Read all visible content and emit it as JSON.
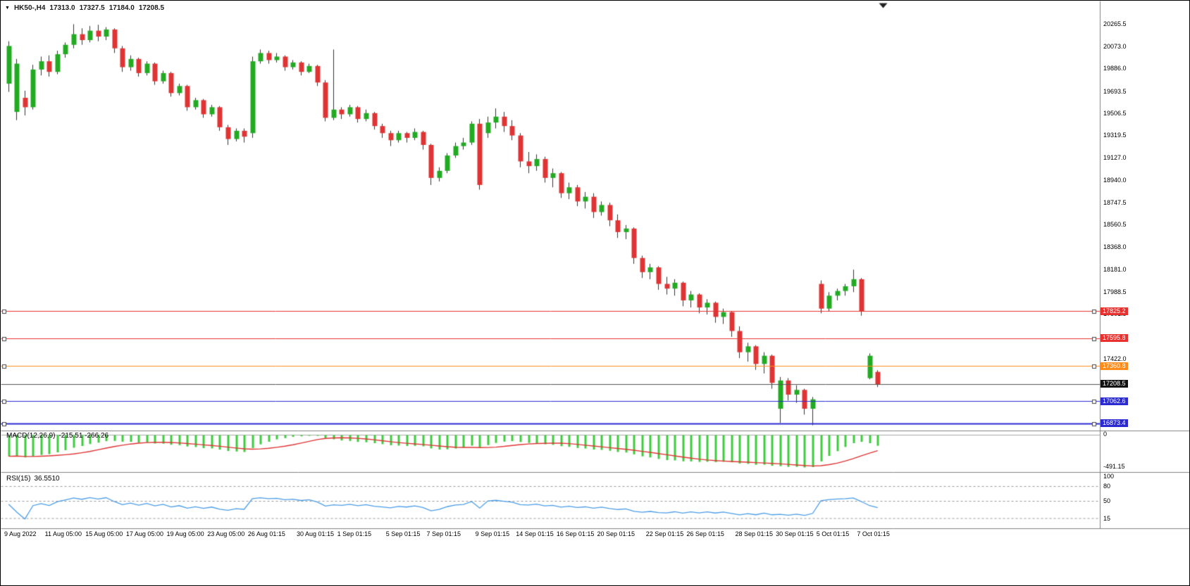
{
  "quote_bar": {
    "symbol_period": "HK50-,H4",
    "open": "17313.0",
    "high": "17327.5",
    "low": "17184.0",
    "close": "17208.5"
  },
  "chart_data": {
    "type": "candlestick",
    "symbol": "HK50-",
    "timeframe": "H4",
    "title": "HK50-,H4",
    "grid": false,
    "ylim": [
      16830,
      20330
    ],
    "colors": {
      "up": "#22ab22",
      "down": "#e03434",
      "wick": "#333333",
      "macd_hist": "#3ecc3e",
      "macd_signal": "#e03434",
      "rsi_line": "#4a9ce8",
      "separator": "#808080",
      "axis_text": "#000000",
      "background": "#ffffff"
    },
    "candles": [
      [
        19760,
        20120,
        19690,
        20080
      ],
      [
        19520,
        19970,
        19450,
        19930
      ],
      [
        19640,
        19700,
        19490,
        19560
      ],
      [
        19560,
        19920,
        19540,
        19880
      ],
      [
        19880,
        19990,
        19830,
        19950
      ],
      [
        19950,
        20000,
        19820,
        19860
      ],
      [
        19860,
        20040,
        19840,
        20010
      ],
      [
        20010,
        20110,
        19980,
        20090
      ],
      [
        20090,
        20265,
        20060,
        20180
      ],
      [
        20180,
        20230,
        20090,
        20130
      ],
      [
        20130,
        20250,
        20110,
        20210
      ],
      [
        20210,
        20260,
        20120,
        20160
      ],
      [
        20160,
        20240,
        20130,
        20220
      ],
      [
        20220,
        20230,
        20020,
        20060
      ],
      [
        20060,
        20080,
        19860,
        19900
      ],
      [
        19900,
        20000,
        19870,
        19970
      ],
      [
        19970,
        19980,
        19820,
        19850
      ],
      [
        19850,
        19950,
        19830,
        19930
      ],
      [
        19930,
        19940,
        19750,
        19780
      ],
      [
        19780,
        19870,
        19760,
        19850
      ],
      [
        19850,
        19860,
        19650,
        19680
      ],
      [
        19680,
        19760,
        19660,
        19740
      ],
      [
        19740,
        19750,
        19530,
        19560
      ],
      [
        19560,
        19640,
        19540,
        19620
      ],
      [
        19620,
        19630,
        19470,
        19500
      ],
      [
        19500,
        19580,
        19480,
        19560
      ],
      [
        19560,
        19570,
        19360,
        19390
      ],
      [
        19390,
        19410,
        19240,
        19290
      ],
      [
        19290,
        19380,
        19270,
        19360
      ],
      [
        19360,
        19380,
        19260,
        19310
      ],
      [
        19340,
        19990,
        19300,
        19950
      ],
      [
        19950,
        20050,
        19930,
        20020
      ],
      [
        20020,
        20040,
        19930,
        19960
      ],
      [
        19960,
        20020,
        19940,
        19990
      ],
      [
        19990,
        20000,
        19870,
        19900
      ],
      [
        19900,
        19960,
        19880,
        19940
      ],
      [
        19940,
        19950,
        19830,
        19860
      ],
      [
        19860,
        19930,
        19850,
        19910
      ],
      [
        19910,
        19920,
        19740,
        19770
      ],
      [
        19770,
        19790,
        19440,
        19470
      ],
      [
        19470,
        20050,
        19450,
        19540
      ],
      [
        19540,
        19560,
        19460,
        19500
      ],
      [
        19500,
        19580,
        19480,
        19560
      ],
      [
        19560,
        19570,
        19430,
        19460
      ],
      [
        19460,
        19540,
        19440,
        19510
      ],
      [
        19510,
        19520,
        19370,
        19400
      ],
      [
        19400,
        19420,
        19300,
        19340
      ],
      [
        19340,
        19360,
        19230,
        19280
      ],
      [
        19280,
        19360,
        19260,
        19340
      ],
      [
        19340,
        19350,
        19260,
        19300
      ],
      [
        19300,
        19380,
        19280,
        19350
      ],
      [
        19350,
        19360,
        19200,
        19240
      ],
      [
        19240,
        19250,
        18900,
        18960
      ],
      [
        18960,
        19050,
        18930,
        19020
      ],
      [
        19020,
        19170,
        19000,
        19150
      ],
      [
        19150,
        19260,
        19130,
        19230
      ],
      [
        19230,
        19300,
        19200,
        19260
      ],
      [
        19260,
        19440,
        19240,
        19420
      ],
      [
        19420,
        19460,
        18860,
        18900
      ],
      [
        19340,
        19480,
        19300,
        19430
      ],
      [
        19430,
        19550,
        19380,
        19480
      ],
      [
        19480,
        19520,
        19350,
        19400
      ],
      [
        19400,
        19450,
        19280,
        19320
      ],
      [
        19320,
        19340,
        19050,
        19100
      ],
      [
        19100,
        19180,
        19000,
        19060
      ],
      [
        19060,
        19160,
        19020,
        19120
      ],
      [
        19120,
        19140,
        18920,
        18960
      ],
      [
        18960,
        19040,
        18880,
        19000
      ],
      [
        19000,
        19010,
        18790,
        18830
      ],
      [
        18830,
        18920,
        18780,
        18880
      ],
      [
        18880,
        18900,
        18720,
        18760
      ],
      [
        18760,
        18840,
        18700,
        18800
      ],
      [
        18800,
        18830,
        18620,
        18670
      ],
      [
        18670,
        18760,
        18640,
        18730
      ],
      [
        18730,
        18750,
        18550,
        18600
      ],
      [
        18600,
        18650,
        18450,
        18500
      ],
      [
        18500,
        18560,
        18440,
        18530
      ],
      [
        18530,
        18540,
        18230,
        18280
      ],
      [
        18280,
        18300,
        18110,
        18160
      ],
      [
        18160,
        18230,
        18100,
        18200
      ],
      [
        18200,
        18210,
        18010,
        18060
      ],
      [
        18060,
        18120,
        17970,
        18020
      ],
      [
        18020,
        18100,
        17960,
        18070
      ],
      [
        18070,
        18080,
        17870,
        17920
      ],
      [
        17920,
        18000,
        17860,
        17970
      ],
      [
        17970,
        17980,
        17810,
        17860
      ],
      [
        17860,
        17930,
        17800,
        17900
      ],
      [
        17900,
        17910,
        17730,
        17780
      ],
      [
        17780,
        17850,
        17720,
        17820
      ],
      [
        17820,
        17830,
        17610,
        17660
      ],
      [
        17660,
        17700,
        17430,
        17480
      ],
      [
        17480,
        17560,
        17400,
        17530
      ],
      [
        17530,
        17540,
        17330,
        17380
      ],
      [
        17380,
        17480,
        17300,
        17450
      ],
      [
        17450,
        17460,
        17170,
        17220
      ],
      [
        17000,
        17270,
        16880,
        17240
      ],
      [
        17240,
        17260,
        17070,
        17120
      ],
      [
        17120,
        17200,
        17050,
        17160
      ],
      [
        17160,
        17170,
        16950,
        17000
      ],
      [
        17000,
        17100,
        16860,
        17080
      ],
      [
        18060,
        18090,
        17810,
        17850
      ],
      [
        17850,
        17990,
        17830,
        17960
      ],
      [
        17960,
        18020,
        17920,
        18000
      ],
      [
        18000,
        18060,
        17960,
        18040
      ],
      [
        18040,
        18181,
        17990,
        18100
      ],
      [
        18100,
        18110,
        17790,
        17830
      ],
      [
        17260,
        17470,
        17250,
        17450
      ],
      [
        17313,
        17327.5,
        17184,
        17208.5
      ]
    ],
    "y_axis_ticks": [
      {
        "label": "20265.5",
        "value": 20265.5
      },
      {
        "label": "20073.0",
        "value": 20073.0
      },
      {
        "label": "19886.0",
        "value": 19886.0
      },
      {
        "label": "19693.5",
        "value": 19693.5
      },
      {
        "label": "19506.5",
        "value": 19506.5
      },
      {
        "label": "19319.5",
        "value": 19319.5
      },
      {
        "label": "19127.0",
        "value": 19127.0
      },
      {
        "label": "18940.0",
        "value": 18940.0
      },
      {
        "label": "18747.5",
        "value": 18747.5
      },
      {
        "label": "18560.5",
        "value": 18560.5
      },
      {
        "label": "18368.0",
        "value": 18368.0
      },
      {
        "label": "18181.0",
        "value": 18181.0
      },
      {
        "label": "17988.5",
        "value": 17988.5
      },
      {
        "label": "17801.5",
        "value": 17801.5
      },
      {
        "label": "17422.0",
        "value": 17422.0
      }
    ],
    "time_labels": [
      {
        "label": "9 Aug 2022",
        "index": 0
      },
      {
        "label": "11 Aug 05:00",
        "index": 5
      },
      {
        "label": "15 Aug 05:00",
        "index": 10
      },
      {
        "label": "17 Aug 05:00",
        "index": 15
      },
      {
        "label": "19 Aug 05:00",
        "index": 20
      },
      {
        "label": "23 Aug 05:00",
        "index": 25
      },
      {
        "label": "26 Aug 01:15",
        "index": 30
      },
      {
        "label": "30 Aug 01:15",
        "index": 36
      },
      {
        "label": "1 Sep 01:15",
        "index": 41
      },
      {
        "label": "5 Sep 01:15",
        "index": 47
      },
      {
        "label": "7 Sep 01:15",
        "index": 52
      },
      {
        "label": "9 Sep 01:15",
        "index": 58
      },
      {
        "label": "14 Sep 01:15",
        "index": 63
      },
      {
        "label": "16 Sep 01:15",
        "index": 68
      },
      {
        "label": "20 Sep 01:15",
        "index": 73
      },
      {
        "label": "22 Sep 01:15",
        "index": 79
      },
      {
        "label": "26 Sep 01:15",
        "index": 84
      },
      {
        "label": "28 Sep 01:15",
        "index": 90
      },
      {
        "label": "30 Sep 01:15",
        "index": 95
      },
      {
        "label": "5 Oct 01:15",
        "index": 100
      },
      {
        "label": "7 Oct 01:15",
        "index": 105
      }
    ],
    "hlines": [
      {
        "label": "17825.2",
        "value": 17825.2,
        "color": "#e8312f",
        "width": 1
      },
      {
        "label": "17595.8",
        "value": 17595.8,
        "color": "#e8312f",
        "width": 1
      },
      {
        "label": "17360.8",
        "value": 17360.8,
        "color": "#ff8c1a",
        "width": 1
      },
      {
        "label": "17062.6",
        "value": 17062.6,
        "color": "#2a2ad0",
        "width": 1
      },
      {
        "label": "16873.4",
        "value": 16873.4,
        "color": "#2a2ad0",
        "width": 2
      }
    ],
    "price_line": {
      "label": "17208.5",
      "value": 17208.5,
      "color": "#555555",
      "badge_bg": "#111111"
    },
    "indicators": {
      "macd": {
        "label": "MACD(12,26,9)",
        "values_text": "-215.51 -266.26",
        "fast": 12,
        "slow": 26,
        "signal": 9,
        "axis_top_label": "0",
        "axis_bottom_label": "-491.15"
      },
      "rsi": {
        "label": "RSI(15)",
        "value_text": "36.5510",
        "period": 15,
        "levels": [
          80,
          50,
          15
        ],
        "axis_labels": [
          {
            "label": "100",
            "value": 100
          },
          {
            "label": "80",
            "value": 80
          },
          {
            "label": "50",
            "value": 50
          },
          {
            "label": "15",
            "value": 15
          }
        ]
      }
    }
  }
}
